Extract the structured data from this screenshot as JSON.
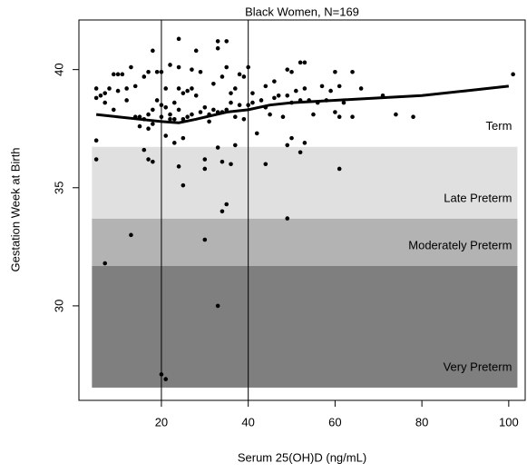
{
  "chart_data": {
    "type": "scatter",
    "title": "Black Women, N=169",
    "x_label": "Serum 25(OH)D (ng/mL)",
    "y_label": "Gestation Week at Birth",
    "xlim": [
      1,
      104
    ],
    "ylim": [
      26,
      42.1
    ],
    "xticks": [
      20,
      40,
      60,
      80,
      100
    ],
    "yticks": [
      30,
      35,
      40
    ],
    "vlines": [
      20,
      40
    ],
    "bands": [
      {
        "label": "Term",
        "from": 36.73,
        "to": 42.1,
        "color": "#ffffff",
        "x_range": [
          4,
          102
        ]
      },
      {
        "label": "Late Preterm",
        "from": 33.69,
        "to": 36.73,
        "color": "#e0e0e0",
        "x_range": [
          4,
          102
        ]
      },
      {
        "label": "Moderately Preterm",
        "from": 31.69,
        "to": 33.69,
        "color": "#b3b3b3",
        "x_range": [
          4,
          102
        ]
      },
      {
        "label": "Very Preterm",
        "from": 26.54,
        "to": 31.69,
        "color": "#7f7f7f",
        "x_range": [
          4,
          102
        ]
      }
    ],
    "series": [
      {
        "color": "#000000",
        "x": [
          5,
          5,
          6,
          7,
          7,
          8,
          9,
          9,
          10,
          10,
          11,
          12,
          12,
          13,
          14,
          14,
          15,
          15,
          16,
          16,
          17,
          17,
          17,
          18,
          18,
          18,
          19,
          19,
          20,
          20,
          20,
          21,
          21,
          21,
          22,
          22,
          22,
          23,
          23,
          23,
          24,
          24,
          24,
          24,
          25,
          25,
          25,
          26,
          26,
          27,
          27,
          27,
          28,
          28,
          29,
          29,
          30,
          31,
          31,
          32,
          32,
          33,
          33,
          33,
          34,
          34,
          35,
          35,
          35,
          36,
          36,
          37,
          37,
          38,
          38,
          39,
          39,
          40,
          40,
          41,
          41,
          42,
          43,
          44,
          44,
          45,
          46,
          46,
          47,
          48,
          49,
          49,
          50,
          50,
          51,
          52,
          52,
          53,
          53,
          54,
          55,
          56,
          57,
          58,
          59,
          60,
          60,
          61,
          61,
          62,
          64,
          64,
          66,
          71,
          74,
          78,
          101,
          5,
          5,
          7,
          13,
          16,
          17,
          18,
          20,
          21,
          24,
          25,
          30,
          30,
          30,
          33,
          33,
          34,
          34,
          35,
          36,
          37,
          44,
          49,
          49,
          50,
          52,
          53,
          61
        ],
        "values": [
          39.2,
          38.8,
          38.9,
          39.0,
          38.6,
          39.2,
          39.8,
          38.3,
          39.8,
          39.1,
          39.8,
          39.2,
          38.7,
          40.1,
          39.3,
          38.0,
          38.0,
          37.6,
          37.9,
          39.7,
          37.5,
          38.1,
          39.9,
          40.8,
          37.7,
          38.3,
          39.9,
          38.7,
          38.0,
          38.5,
          39.9,
          37.2,
          38.4,
          39.2,
          37.9,
          38.1,
          40.2,
          36.9,
          37.9,
          38.6,
          41.3,
          39.2,
          38.3,
          40.1,
          37.9,
          39.0,
          37.1,
          38.0,
          39.1,
          38.1,
          39.2,
          40.0,
          40.8,
          38.9,
          38.2,
          39.9,
          38.4,
          37.8,
          38.1,
          38.3,
          39.4,
          41.2,
          40.9,
          38.2,
          38.2,
          39.7,
          41.2,
          38.3,
          40.1,
          39.0,
          38.6,
          39.2,
          38.0,
          39.8,
          38.5,
          39.7,
          37.9,
          40.1,
          38.5,
          39.0,
          38.6,
          37.3,
          38.7,
          39.3,
          38.4,
          38.1,
          38.8,
          39.5,
          38.9,
          38.0,
          40.0,
          38.9,
          39.9,
          38.6,
          39.1,
          38.7,
          40.3,
          40.3,
          39.2,
          38.7,
          38.1,
          38.6,
          39.3,
          38.7,
          39.1,
          39.9,
          38.2,
          39.3,
          38.0,
          38.6,
          39.9,
          38.0,
          39.2,
          38.9,
          38.1,
          38.0,
          39.8,
          37.0,
          36.2,
          31.8,
          33.0,
          36.6,
          36.2,
          36.1,
          27.1,
          26.9,
          35.9,
          35.1,
          36.2,
          35.8,
          32.8,
          36.7,
          30.0,
          36.1,
          34.0,
          34.3,
          36.0,
          36.8,
          36.0,
          36.8,
          33.7,
          37.1,
          36.5,
          36.9,
          35.8
        ]
      }
    ],
    "smooth": {
      "color": "#000000",
      "x": [
        5,
        10,
        15,
        20,
        24,
        28,
        35,
        40,
        45,
        50,
        60,
        70,
        80,
        90,
        100
      ],
      "values": [
        38.1,
        38.0,
        37.9,
        37.8,
        37.75,
        37.9,
        38.2,
        38.3,
        38.5,
        38.6,
        38.7,
        38.8,
        38.9,
        39.1,
        39.3
      ]
    }
  }
}
